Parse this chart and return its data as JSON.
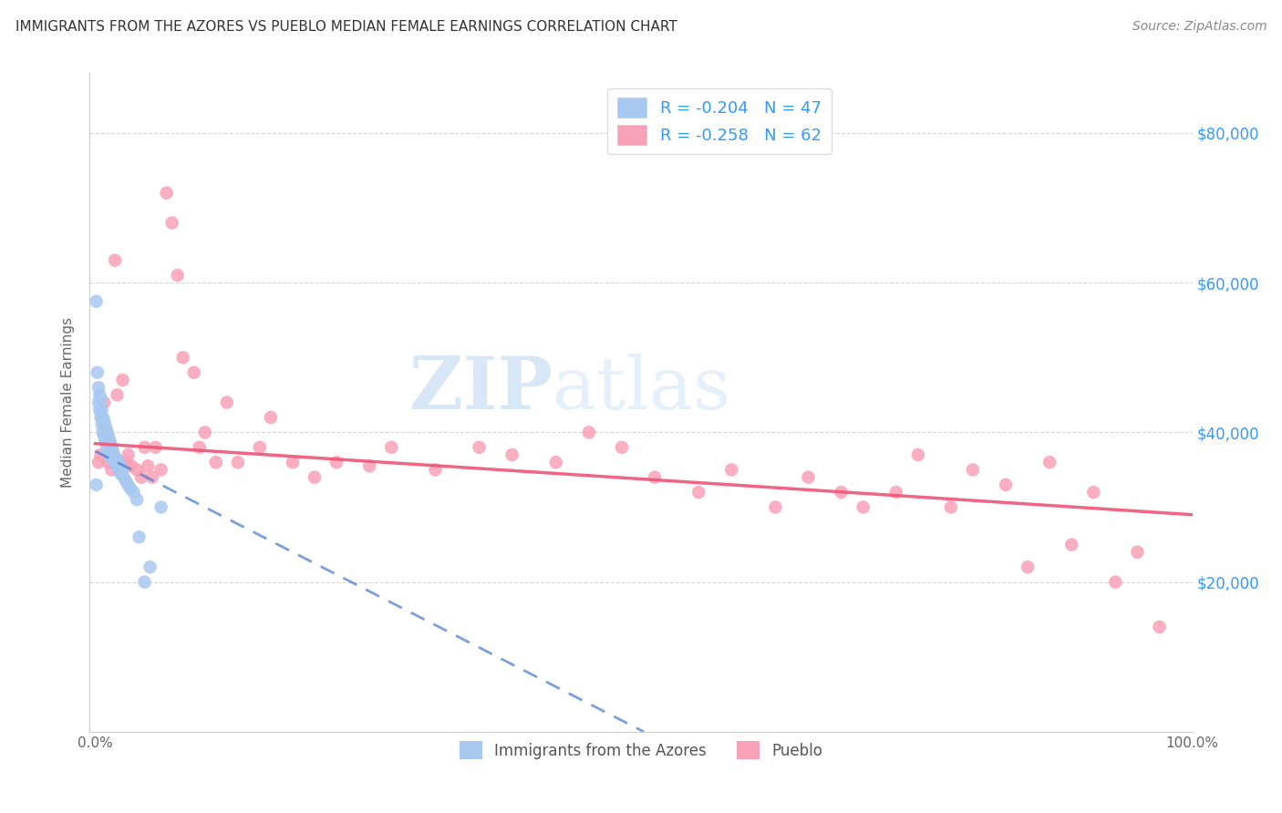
{
  "title": "IMMIGRANTS FROM THE AZORES VS PUEBLO MEDIAN FEMALE EARNINGS CORRELATION CHART",
  "source": "Source: ZipAtlas.com",
  "ylabel": "Median Female Earnings",
  "xlim": [
    -0.005,
    1.0
  ],
  "ylim": [
    0,
    88000
  ],
  "xtick_positions": [
    0.0,
    0.1,
    0.2,
    0.3,
    0.4,
    0.5,
    0.6,
    0.7,
    0.8,
    0.9,
    1.0
  ],
  "xticklabels": [
    "0.0%",
    "",
    "",
    "",
    "",
    "",
    "",
    "",
    "",
    "",
    "100.0%"
  ],
  "ytick_positions": [
    20000,
    40000,
    60000,
    80000
  ],
  "ytick_labels": [
    "$20,000",
    "$40,000",
    "$60,000",
    "$80,000"
  ],
  "legend_r1": "R = -0.204",
  "legend_n1": "N = 47",
  "legend_r2": "R = -0.258",
  "legend_n2": "N = 62",
  "series1_label": "Immigrants from the Azores",
  "series2_label": "Pueblo",
  "series1_color": "#a8c8f0",
  "series2_color": "#f8a0b8",
  "series1_line_color": "#4477cc",
  "series2_line_color": "#ee5577",
  "watermark_zip": "ZIP",
  "watermark_atlas": "atlas",
  "series1_x": [
    0.001,
    0.002,
    0.003,
    0.003,
    0.004,
    0.004,
    0.005,
    0.005,
    0.006,
    0.006,
    0.007,
    0.007,
    0.008,
    0.008,
    0.009,
    0.009,
    0.01,
    0.01,
    0.011,
    0.011,
    0.012,
    0.012,
    0.013,
    0.013,
    0.014,
    0.015,
    0.015,
    0.016,
    0.017,
    0.018,
    0.019,
    0.02,
    0.021,
    0.022,
    0.023,
    0.025,
    0.026,
    0.028,
    0.03,
    0.032,
    0.035,
    0.038,
    0.04,
    0.045,
    0.05,
    0.06,
    0.001
  ],
  "series1_y": [
    57500,
    48000,
    46000,
    44000,
    45000,
    43000,
    44500,
    42000,
    43000,
    41000,
    42000,
    40000,
    41500,
    39500,
    41000,
    39000,
    40500,
    38500,
    40000,
    38000,
    39500,
    37500,
    39000,
    37000,
    38500,
    38000,
    36500,
    37500,
    37000,
    36000,
    36500,
    35500,
    36000,
    35000,
    34500,
    35000,
    34000,
    33500,
    33000,
    32500,
    32000,
    31000,
    26000,
    20000,
    22000,
    30000,
    33000
  ],
  "series2_x": [
    0.003,
    0.005,
    0.008,
    0.01,
    0.012,
    0.015,
    0.018,
    0.02,
    0.022,
    0.025,
    0.028,
    0.03,
    0.033,
    0.038,
    0.042,
    0.045,
    0.048,
    0.052,
    0.055,
    0.06,
    0.065,
    0.07,
    0.075,
    0.08,
    0.09,
    0.095,
    0.1,
    0.11,
    0.12,
    0.13,
    0.15,
    0.16,
    0.18,
    0.2,
    0.22,
    0.25,
    0.27,
    0.31,
    0.35,
    0.38,
    0.42,
    0.45,
    0.48,
    0.51,
    0.55,
    0.58,
    0.62,
    0.65,
    0.68,
    0.7,
    0.73,
    0.75,
    0.78,
    0.8,
    0.83,
    0.85,
    0.87,
    0.89,
    0.91,
    0.93,
    0.95,
    0.97
  ],
  "series2_y": [
    36000,
    37000,
    44000,
    40000,
    36000,
    35000,
    63000,
    45000,
    36000,
    47000,
    36000,
    37000,
    35500,
    35000,
    34000,
    38000,
    35500,
    34000,
    38000,
    35000,
    72000,
    68000,
    61000,
    50000,
    48000,
    38000,
    40000,
    36000,
    44000,
    36000,
    38000,
    42000,
    36000,
    34000,
    36000,
    35500,
    38000,
    35000,
    38000,
    37000,
    36000,
    40000,
    38000,
    34000,
    32000,
    35000,
    30000,
    34000,
    32000,
    30000,
    32000,
    37000,
    30000,
    35000,
    33000,
    22000,
    36000,
    25000,
    32000,
    20000,
    24000,
    14000
  ],
  "trend1_x0": 0.0,
  "trend1_y0": 37500,
  "trend1_x1": 0.5,
  "trend1_y1": 0,
  "trend2_x0": 0.0,
  "trend2_y0": 38500,
  "trend2_x1": 1.0,
  "trend2_y1": 29000
}
